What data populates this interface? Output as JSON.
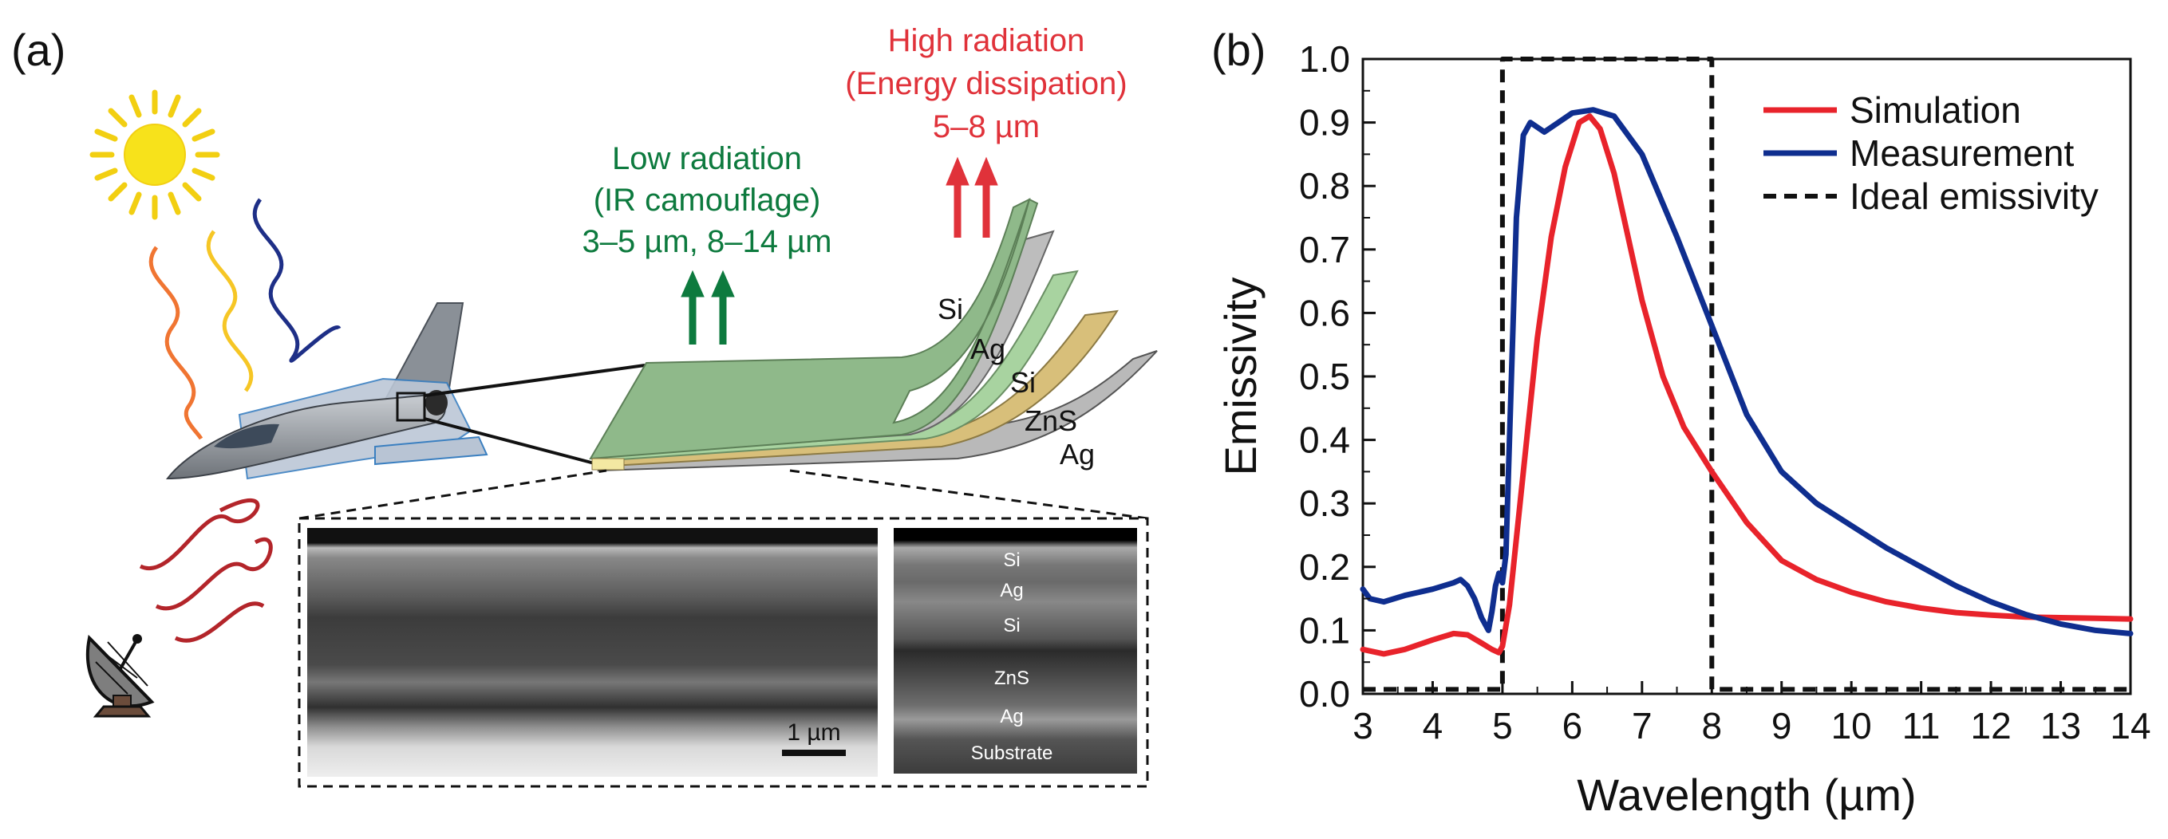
{
  "panel_a": {
    "label": "(a)",
    "low_radiation": {
      "line1": "Low radiation",
      "line2": "(IR camouflage)",
      "line3": "3–5 µm, 8–14 µm"
    },
    "high_radiation": {
      "line1": "High radiation",
      "line2": "(Energy dissipation)",
      "line3": "5–8 µm"
    },
    "layers": [
      "Si",
      "Ag",
      "Si",
      "ZnS",
      "Ag"
    ],
    "sem_labels": [
      "Si",
      "Ag",
      "Si",
      "ZnS",
      "Ag",
      "Substrate"
    ],
    "scale_bar": "1 µm",
    "colors": {
      "green": "#0d7a3e",
      "red": "#e0323a",
      "sun": "#f7e21b"
    },
    "icons": [
      "sun-icon",
      "aircraft-icon",
      "radar-dish-icon"
    ]
  },
  "panel_b": {
    "label": "(b)"
  },
  "chart_data": {
    "type": "line",
    "xlabel": "Wavelength (µm)",
    "ylabel": "Emissivity",
    "xlim": [
      3,
      14
    ],
    "ylim": [
      0,
      1.0
    ],
    "xticks": [
      3,
      4,
      5,
      6,
      7,
      8,
      9,
      10,
      11,
      12,
      13,
      14
    ],
    "yticks": [
      0.0,
      0.1,
      0.2,
      0.3,
      0.4,
      0.5,
      0.6,
      0.7,
      0.8,
      0.9,
      1.0
    ],
    "ytick_labels": [
      "0.0",
      "0.1",
      "0.2",
      "0.3",
      "0.4",
      "0.5",
      "0.6",
      "0.7",
      "0.8",
      "0.9",
      "1.0"
    ],
    "grid": false,
    "legend": "top-right",
    "series": [
      {
        "name": "Simulation",
        "color": "#e8232b",
        "style": "solid",
        "x": [
          3.0,
          3.3,
          3.6,
          4.0,
          4.3,
          4.5,
          4.7,
          4.85,
          4.95,
          5.0,
          5.1,
          5.3,
          5.5,
          5.7,
          5.9,
          6.1,
          6.25,
          6.4,
          6.6,
          6.8,
          7.0,
          7.3,
          7.6,
          8.0,
          8.5,
          9.0,
          9.5,
          10.0,
          10.5,
          11.0,
          11.5,
          12.0,
          12.5,
          13.0,
          13.5,
          14.0
        ],
        "y": [
          0.07,
          0.063,
          0.07,
          0.085,
          0.095,
          0.093,
          0.08,
          0.07,
          0.065,
          0.075,
          0.14,
          0.35,
          0.56,
          0.72,
          0.83,
          0.9,
          0.91,
          0.89,
          0.82,
          0.72,
          0.62,
          0.5,
          0.42,
          0.35,
          0.27,
          0.21,
          0.18,
          0.16,
          0.145,
          0.135,
          0.128,
          0.124,
          0.121,
          0.12,
          0.119,
          0.118
        ]
      },
      {
        "name": "Measurement",
        "color": "#0f2e8f",
        "style": "solid",
        "x": [
          3.0,
          3.1,
          3.3,
          3.6,
          4.0,
          4.3,
          4.4,
          4.5,
          4.6,
          4.7,
          4.8,
          4.85,
          4.9,
          4.95,
          5.0,
          5.05,
          5.1,
          5.2,
          5.3,
          5.4,
          5.6,
          5.8,
          6.0,
          6.3,
          6.6,
          7.0,
          7.5,
          8.0,
          8.5,
          9.0,
          9.5,
          10.0,
          10.5,
          11.0,
          11.5,
          12.0,
          12.5,
          13.0,
          13.5,
          14.0
        ],
        "y": [
          0.165,
          0.15,
          0.145,
          0.155,
          0.165,
          0.175,
          0.18,
          0.17,
          0.15,
          0.12,
          0.1,
          0.13,
          0.17,
          0.19,
          0.175,
          0.22,
          0.4,
          0.75,
          0.88,
          0.9,
          0.885,
          0.9,
          0.915,
          0.92,
          0.91,
          0.85,
          0.72,
          0.58,
          0.44,
          0.35,
          0.3,
          0.265,
          0.23,
          0.2,
          0.17,
          0.145,
          0.125,
          0.11,
          0.1,
          0.095
        ]
      },
      {
        "name": "Ideal emissivity",
        "color": "#111111",
        "style": "dashed",
        "x": [
          3,
          5,
          5,
          8,
          8,
          14
        ],
        "y": [
          0.007,
          0.007,
          1.0,
          1.0,
          0.007,
          0.007
        ]
      }
    ]
  }
}
